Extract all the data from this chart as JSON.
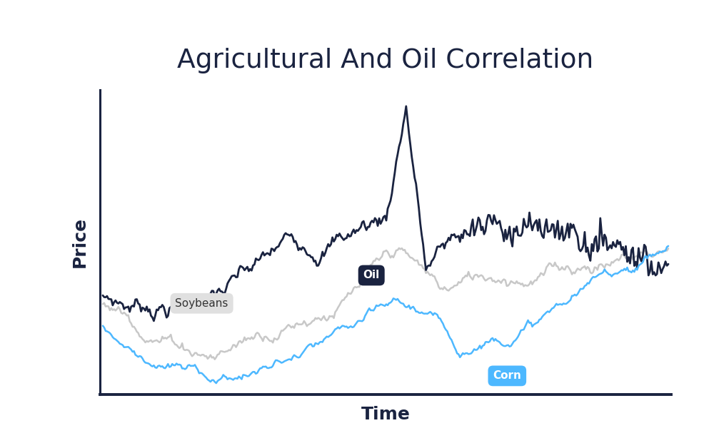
{
  "title": "Agricultural And Oil Correlation",
  "xlabel": "Time",
  "ylabel": "Price",
  "background_color": "#ffffff",
  "oil_color": "#1a2340",
  "soybeans_color": "#c8c8c8",
  "corn_color": "#4db8ff",
  "oil_label": "Oil",
  "soybeans_label": "Soybeans",
  "corn_label": "Corn",
  "oil_label_bg": "#1a2340",
  "oil_label_fg": "#ffffff",
  "soybeans_label_bg": "#e0e0e0",
  "soybeans_label_fg": "#333333",
  "corn_label_bg": "#4db8ff",
  "corn_label_fg": "#ffffff",
  "n_points": 400,
  "seed": 7
}
